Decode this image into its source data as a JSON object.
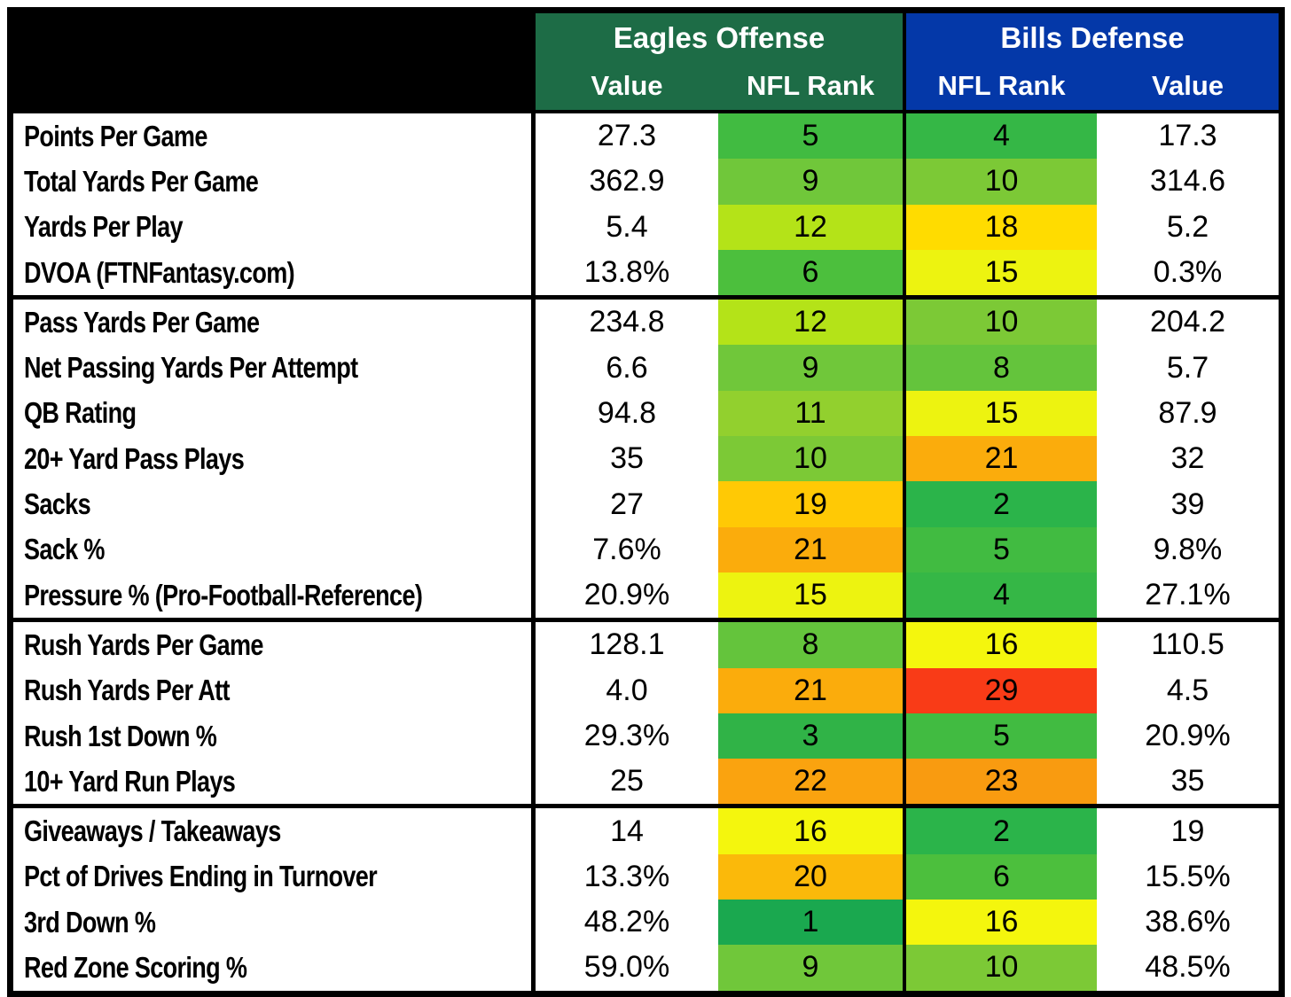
{
  "colors": {
    "eagles_header_bg": "#1D6C46",
    "bills_header_bg": "#0438A8",
    "header_text": "#FFFFFF",
    "rank_scale": "heatmap by NFL rank: green (1 = best) through yellow (~16) to red (32 = worst)",
    "rank_colors": {
      "1": "#1AA84F",
      "2": "#2BB44A",
      "3": "#30B347",
      "4": "#35B746",
      "5": "#41BB41",
      "6": "#4CBF3D",
      "8": "#64C43C",
      "9": "#70C73A",
      "10": "#7CC936",
      "11": "#92D02E",
      "12": "#B4E318",
      "15": "#EDF310",
      "16": "#F4F60D",
      "18": "#FFDC00",
      "19": "#FFC905",
      "20": "#FBB90A",
      "21": "#FBAC0C",
      "22": "#FAA30F",
      "23": "#F99B10",
      "29": "#F93B17"
    }
  },
  "chart_data": {
    "type": "table",
    "column_groups": [
      {
        "title": "Eagles Offense",
        "columns": [
          "Value",
          "NFL Rank"
        ]
      },
      {
        "title": "Bills Defense",
        "columns": [
          "NFL Rank",
          "Value"
        ]
      }
    ],
    "row_groups": [
      {
        "rows": [
          {
            "label": "Points Per Game",
            "eagles_value": "27.3",
            "eagles_rank": 5,
            "bills_rank": 4,
            "bills_value": "17.3"
          },
          {
            "label": "Total Yards Per Game",
            "eagles_value": "362.9",
            "eagles_rank": 9,
            "bills_rank": 10,
            "bills_value": "314.6"
          },
          {
            "label": "Yards Per Play",
            "eagles_value": "5.4",
            "eagles_rank": 12,
            "bills_rank": 18,
            "bills_value": "5.2"
          },
          {
            "label": "DVOA (FTNFantasy.com)",
            "eagles_value": "13.8%",
            "eagles_rank": 6,
            "bills_rank": 15,
            "bills_value": "0.3%"
          }
        ]
      },
      {
        "rows": [
          {
            "label": "Pass Yards Per Game",
            "eagles_value": "234.8",
            "eagles_rank": 12,
            "bills_rank": 10,
            "bills_value": "204.2"
          },
          {
            "label": "Net Passing Yards Per Attempt",
            "eagles_value": "6.6",
            "eagles_rank": 9,
            "bills_rank": 8,
            "bills_value": "5.7"
          },
          {
            "label": "QB Rating",
            "eagles_value": "94.8",
            "eagles_rank": 11,
            "bills_rank": 15,
            "bills_value": "87.9"
          },
          {
            "label": "20+ Yard Pass Plays",
            "eagles_value": "35",
            "eagles_rank": 10,
            "bills_rank": 21,
            "bills_value": "32"
          },
          {
            "label": "Sacks",
            "eagles_value": "27",
            "eagles_rank": 19,
            "bills_rank": 2,
            "bills_value": "39"
          },
          {
            "label": "Sack %",
            "eagles_value": "7.6%",
            "eagles_rank": 21,
            "bills_rank": 5,
            "bills_value": "9.8%"
          },
          {
            "label": "Pressure % (Pro-Football-Reference)",
            "eagles_value": "20.9%",
            "eagles_rank": 15,
            "bills_rank": 4,
            "bills_value": "27.1%"
          }
        ]
      },
      {
        "rows": [
          {
            "label": "Rush Yards Per Game",
            "eagles_value": "128.1",
            "eagles_rank": 8,
            "bills_rank": 16,
            "bills_value": "110.5"
          },
          {
            "label": "Rush Yards Per Att",
            "eagles_value": "4.0",
            "eagles_rank": 21,
            "bills_rank": 29,
            "bills_value": "4.5"
          },
          {
            "label": "Rush 1st Down %",
            "eagles_value": "29.3%",
            "eagles_rank": 3,
            "bills_rank": 5,
            "bills_value": "20.9%"
          },
          {
            "label": "10+ Yard Run Plays",
            "eagles_value": "25",
            "eagles_rank": 22,
            "bills_rank": 23,
            "bills_value": "35"
          }
        ]
      },
      {
        "rows": [
          {
            "label": "Giveaways / Takeaways",
            "eagles_value": "14",
            "eagles_rank": 16,
            "bills_rank": 2,
            "bills_value": "19"
          },
          {
            "label": "Pct of Drives Ending in Turnover",
            "eagles_value": "13.3%",
            "eagles_rank": 20,
            "bills_rank": 6,
            "bills_value": "15.5%"
          },
          {
            "label": "3rd Down %",
            "eagles_value": "48.2%",
            "eagles_rank": 1,
            "bills_rank": 16,
            "bills_value": "38.6%"
          },
          {
            "label": "Red Zone Scoring %",
            "eagles_value": "59.0%",
            "eagles_rank": 9,
            "bills_rank": 10,
            "bills_value": "48.5%"
          }
        ]
      }
    ]
  }
}
